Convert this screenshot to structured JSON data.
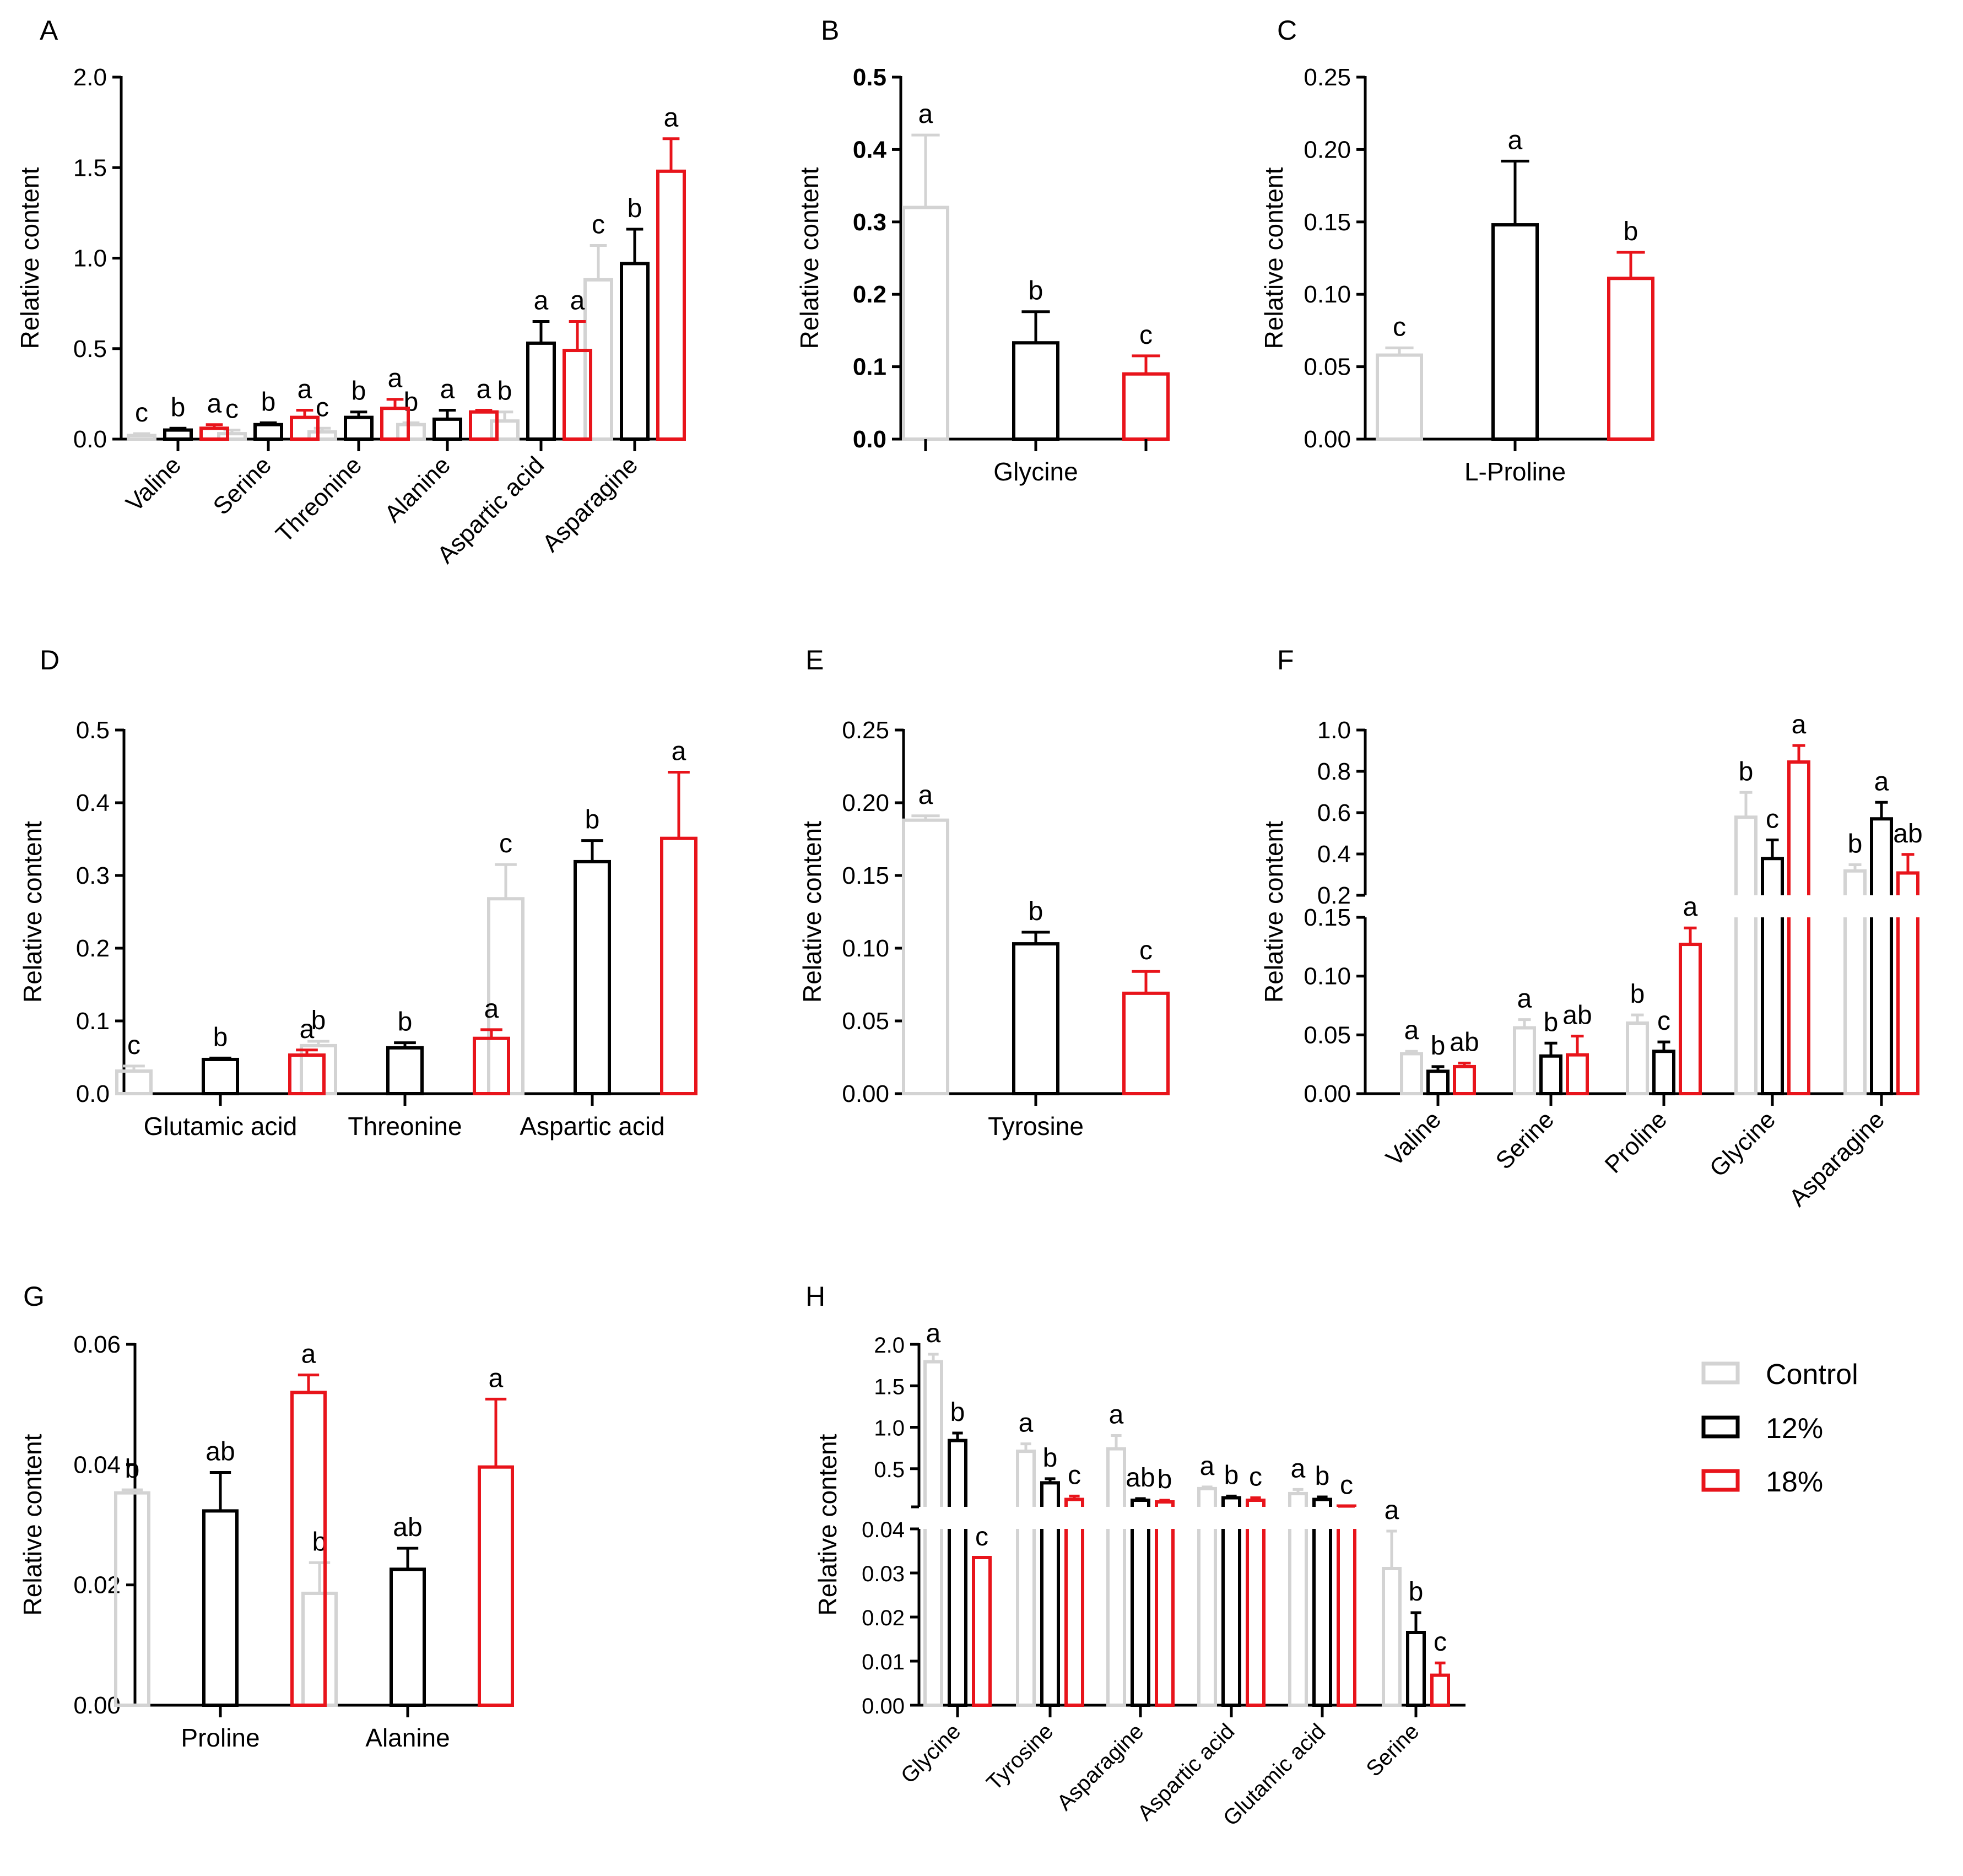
{
  "colors": {
    "control": "#d3d3d3",
    "p12": "#000000",
    "p18": "#e8141b"
  },
  "legend": {
    "items": [
      {
        "label": "Control",
        "color_key": "control"
      },
      {
        "label": "12%",
        "color_key": "p12"
      },
      {
        "label": "18%",
        "color_key": "p18"
      }
    ]
  },
  "chart_data": [
    {
      "panel": "A",
      "type": "bar",
      "ylabel": "Relative content",
      "ylim": [
        0,
        2.0
      ],
      "yticks": [
        "0.0",
        "0.5",
        "1.0",
        "1.5",
        "2.0"
      ],
      "rotate_x": true,
      "categories": [
        "Valine",
        "Serine",
        "Threonine",
        "Alanine",
        "Aspartic acid",
        "Asparagine"
      ],
      "series": [
        {
          "key": "control",
          "values": [
            0.02,
            0.03,
            0.04,
            0.08,
            0.1,
            0.88
          ],
          "errors": [
            0.01,
            0.02,
            0.02,
            0.01,
            0.05,
            0.19
          ],
          "letters": [
            "c",
            "c",
            "c",
            "b",
            "b",
            "c"
          ]
        },
        {
          "key": "p12",
          "values": [
            0.05,
            0.08,
            0.12,
            0.11,
            0.53,
            0.97
          ],
          "errors": [
            0.01,
            0.01,
            0.03,
            0.05,
            0.12,
            0.19
          ],
          "letters": [
            "b",
            "b",
            "b",
            "a",
            "a",
            "b"
          ]
        },
        {
          "key": "p18",
          "values": [
            0.06,
            0.12,
            0.17,
            0.15,
            0.49,
            1.48
          ],
          "errors": [
            0.02,
            0.04,
            0.05,
            0.01,
            0.16,
            0.18
          ],
          "letters": [
            "a",
            "a",
            "a",
            "a",
            "a",
            "a"
          ]
        }
      ]
    },
    {
      "panel": "B",
      "type": "bar",
      "ylabel": "Relative content",
      "ylim": [
        0,
        0.5
      ],
      "yticks": [
        "0.0",
        "0.1",
        "0.2",
        "0.3",
        "0.4",
        "0.5"
      ],
      "bold_ticks": true,
      "grouped_ticks": true,
      "categories": [
        "Glycine"
      ],
      "series": [
        {
          "key": "control",
          "values": [
            0.32
          ],
          "errors": [
            0.1
          ],
          "letters": [
            "a"
          ]
        },
        {
          "key": "p12",
          "values": [
            0.133
          ],
          "errors": [
            0.043
          ],
          "letters": [
            "b"
          ]
        },
        {
          "key": "p18",
          "values": [
            0.09
          ],
          "errors": [
            0.025
          ],
          "letters": [
            "c"
          ]
        }
      ]
    },
    {
      "panel": "C",
      "type": "bar",
      "ylabel": "Relative content",
      "ylim": [
        0,
        0.25
      ],
      "yticks": [
        "0.00",
        "0.05",
        "0.10",
        "0.15",
        "0.20",
        "0.25"
      ],
      "categories": [
        "L-Proline"
      ],
      "series": [
        {
          "key": "control",
          "values": [
            0.058
          ],
          "errors": [
            0.005
          ],
          "letters": [
            "c"
          ]
        },
        {
          "key": "p12",
          "values": [
            0.148
          ],
          "errors": [
            0.044
          ],
          "letters": [
            "a"
          ]
        },
        {
          "key": "p18",
          "values": [
            0.111
          ],
          "errors": [
            0.018
          ],
          "letters": [
            "b"
          ]
        }
      ]
    },
    {
      "panel": "D",
      "type": "bar",
      "ylabel": "Relative content",
      "ylim": [
        0,
        0.5
      ],
      "yticks": [
        "0.0",
        "0.1",
        "0.2",
        "0.3",
        "0.4",
        "0.5"
      ],
      "categories": [
        "Glutamic acid",
        "Threonine",
        "Aspartic acid"
      ],
      "series": [
        {
          "key": "control",
          "values": [
            0.031,
            0.066,
            0.268
          ],
          "errors": [
            0.007,
            0.006,
            0.047
          ],
          "letters": [
            "c",
            "b",
            "c"
          ]
        },
        {
          "key": "p12",
          "values": [
            0.047,
            0.063,
            0.319
          ],
          "errors": [
            0.002,
            0.007,
            0.029
          ],
          "letters": [
            "b",
            "b",
            "b"
          ]
        },
        {
          "key": "p18",
          "values": [
            0.053,
            0.076,
            0.351
          ],
          "errors": [
            0.007,
            0.012,
            0.091
          ],
          "letters": [
            "a",
            "a",
            "a"
          ]
        }
      ]
    },
    {
      "panel": "E",
      "type": "bar",
      "ylabel": "Relative content",
      "ylim": [
        0,
        0.25
      ],
      "yticks": [
        "0.00",
        "0.05",
        "0.10",
        "0.15",
        "0.20",
        "0.25"
      ],
      "categories": [
        "Tyrosine"
      ],
      "series": [
        {
          "key": "control",
          "values": [
            0.188
          ],
          "errors": [
            0.003
          ],
          "letters": [
            "a"
          ]
        },
        {
          "key": "p12",
          "values": [
            0.103
          ],
          "errors": [
            0.008
          ],
          "letters": [
            "b"
          ]
        },
        {
          "key": "p18",
          "values": [
            0.069
          ],
          "errors": [
            0.015
          ],
          "letters": [
            "c"
          ]
        }
      ]
    },
    {
      "panel": "F",
      "type": "bar",
      "ylabel": "Relative content",
      "broken_axis": {
        "lower": [
          0,
          0.15
        ],
        "upper": [
          0.2,
          1.0
        ]
      },
      "yticks_lower": [
        "0.00",
        "0.05",
        "0.10",
        "0.15"
      ],
      "yticks_upper": [
        "0.2",
        "0.4",
        "0.6",
        "0.8",
        "1.0"
      ],
      "rotate_x": true,
      "categories": [
        "Valine",
        "Serine",
        "Proline",
        "Glycine",
        "Asparagine"
      ],
      "series": [
        {
          "key": "control",
          "values": [
            0.034,
            0.056,
            0.06,
            0.578,
            0.318
          ],
          "errors": [
            0.002,
            0.007,
            0.007,
            0.12,
            0.03
          ],
          "letters": [
            "a",
            "a",
            "b",
            "b",
            "b"
          ]
        },
        {
          "key": "p12",
          "values": [
            0.019,
            0.032,
            0.036,
            0.378,
            0.57
          ],
          "errors": [
            0.004,
            0.011,
            0.008,
            0.09,
            0.08
          ],
          "letters": [
            "b",
            "b",
            "c",
            "c",
            "a"
          ]
        },
        {
          "key": "p18",
          "values": [
            0.023,
            0.033,
            0.127,
            0.845,
            0.308
          ],
          "errors": [
            0.003,
            0.016,
            0.014,
            0.08,
            0.09
          ],
          "letters": [
            "ab",
            "ab",
            "a",
            "a",
            "ab"
          ]
        }
      ]
    },
    {
      "panel": "G",
      "type": "bar",
      "ylabel": "Relative content",
      "ylim": [
        0,
        0.06
      ],
      "yticks": [
        "0.00",
        "0.02",
        "0.04",
        "0.06"
      ],
      "categories": [
        "Proline",
        "Alanine"
      ],
      "series": [
        {
          "key": "control",
          "values": [
            0.0353,
            0.0186
          ],
          "errors": [
            0.0005,
            0.0051
          ],
          "letters": [
            "b",
            "b"
          ]
        },
        {
          "key": "p12",
          "values": [
            0.0323,
            0.0226
          ],
          "errors": [
            0.0064,
            0.0035
          ],
          "letters": [
            "ab",
            "ab"
          ]
        },
        {
          "key": "p18",
          "values": [
            0.052,
            0.0396
          ],
          "errors": [
            0.0029,
            0.0113
          ],
          "letters": [
            "a",
            "a"
          ]
        }
      ]
    },
    {
      "panel": "H",
      "type": "bar",
      "ylabel": "Relative content",
      "broken_axis": {
        "lower": [
          0,
          0.04
        ],
        "upper": [
          0.04,
          2.0
        ]
      },
      "yticks_lower": [
        "0.00",
        "0.01",
        "0.02",
        "0.03",
        "0.04"
      ],
      "yticks_upper": [
        "0.5",
        "1.0",
        "1.5",
        "2.0"
      ],
      "rotate_x": true,
      "categories": [
        "Glycine",
        "Tyrosine",
        "Asparagine",
        "Aspartic acid",
        "Glutamic acid",
        "Serine"
      ],
      "series": [
        {
          "key": "control",
          "values": [
            1.79,
            0.71,
            0.74,
            0.26,
            0.2,
            0.031
          ],
          "errors": [
            0.09,
            0.09,
            0.16,
            0.02,
            0.05,
            0.0085
          ],
          "letters": [
            "a",
            "a",
            "a",
            "a",
            "a",
            "a"
          ]
        },
        {
          "key": "p12",
          "values": [
            0.84,
            0.33,
            0.12,
            0.15,
            0.13,
            0.0165
          ],
          "errors": [
            0.09,
            0.05,
            0.02,
            0.02,
            0.03,
            0.0045
          ],
          "letters": [
            "b",
            "b",
            "ab",
            "b",
            "b",
            "b"
          ]
        },
        {
          "key": "p18",
          "values": [
            0.0335,
            0.13,
            0.1,
            0.12,
            0.05,
            0.0068
          ],
          "errors": [
            0.0,
            0.04,
            0.02,
            0.03,
            0.0,
            0.0028
          ],
          "letters": [
            "c",
            "c",
            "b",
            "c",
            "c",
            "c"
          ]
        }
      ]
    }
  ],
  "panels": {
    "A": {
      "letter": "A"
    },
    "B": {
      "letter": "B"
    },
    "C": {
      "letter": "C"
    },
    "D": {
      "letter": "D"
    },
    "E": {
      "letter": "E"
    },
    "F": {
      "letter": "F"
    },
    "G": {
      "letter": "G"
    },
    "H": {
      "letter": "H"
    }
  }
}
